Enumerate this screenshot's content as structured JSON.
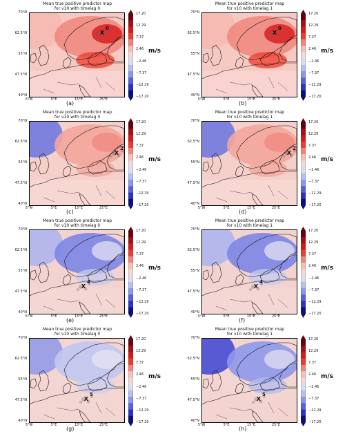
{
  "panels": [
    {
      "id": "a",
      "title_line1": "Mean true positive predictor map",
      "title_line2": "for v10 with timelag 0",
      "label": "(a)",
      "marker": "0",
      "pattern": "north-pos"
    },
    {
      "id": "b",
      "title_line1": "Mean true positive predictor map",
      "title_line2": "for v10 with timelag 1",
      "label": "(b)",
      "marker": "0",
      "pattern": "north-pos"
    },
    {
      "id": "c",
      "title_line1": "Mean true positive predictor map",
      "title_line2": "for v10 with timelag 0",
      "label": "(c)",
      "marker": "2",
      "pattern": "nw-neg"
    },
    {
      "id": "d",
      "title_line1": "Mean true positive predictor map",
      "title_line2": "for v10 with timelag 1",
      "label": "(d)",
      "marker": "2",
      "pattern": "nw-neg"
    },
    {
      "id": "e",
      "title_line1": "Mean true positive predictor map",
      "title_line2": "for v10 with timelag 0",
      "label": "(e)",
      "marker": "4",
      "pattern": "center-neg"
    },
    {
      "id": "f",
      "title_line1": "Mean true positive predictor map",
      "title_line2": "for v10 with timelag 1",
      "label": "(f)",
      "marker": "4",
      "pattern": "center-neg"
    },
    {
      "id": "g",
      "title_line1": "Mean true positive predictor map",
      "title_line2": "for v10 with timelag 0",
      "label": "(g)",
      "marker": "5",
      "pattern": "north-neg"
    },
    {
      "id": "h",
      "title_line1": "Mean true positive predictor map",
      "title_line2": "for v10 with timelag 1",
      "label": "(h)",
      "marker": "5",
      "pattern": "north-neg-strong"
    }
  ],
  "axes": {
    "lat_ticks": [
      "70°N",
      "62.5°N",
      "55°N",
      "47.5°N",
      "40°N"
    ],
    "lon_ticks": [
      "5°W",
      "5°E",
      "15°E",
      "25°E"
    ]
  },
  "colorbar": {
    "ticks": [
      "17.20",
      "12.29",
      "7.37",
      "2.46",
      "−2.46",
      "−7.37",
      "−12.29",
      "−17.20"
    ],
    "unit": "m/s",
    "colors": [
      "#67000d",
      "#a50f15",
      "#d7191c",
      "#ef3b2c",
      "#f4837a",
      "#f9beb6",
      "#f3d9d5",
      "#dcdcf0",
      "#b7bff0",
      "#8c96ea",
      "#5a62dc",
      "#2b32c8",
      "#08107e"
    ]
  }
}
